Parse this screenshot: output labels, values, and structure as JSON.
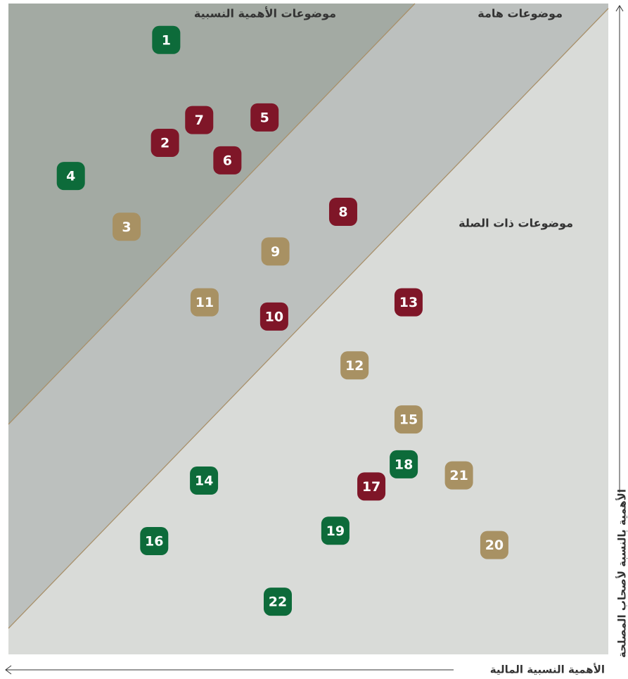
{
  "chart_data": {
    "type": "scatter",
    "annotations": [
      "موضوعات الأهمية النسبية",
      "موضوعات هامة",
      "موضوعات ذات الصلة"
    ],
    "x_label": "الأهمية النسبية المالية",
    "y_label": "الأهمية بالنسبة لأصحاب المصلحة",
    "xlim": [
      0,
      100
    ],
    "ylim": [
      0,
      100
    ],
    "points": [
      {
        "label": "1",
        "x": 26.3,
        "y": 94.4,
        "color": "#0d6b3a"
      },
      {
        "label": "2",
        "x": 26.1,
        "y": 78.6,
        "color": "#7f1628"
      },
      {
        "label": "3",
        "x": 19.7,
        "y": 65.7,
        "color": "#a89163"
      },
      {
        "label": "4",
        "x": 10.4,
        "y": 73.5,
        "color": "#0d6b3a"
      },
      {
        "label": "5",
        "x": 42.7,
        "y": 82.5,
        "color": "#7f1628"
      },
      {
        "label": "6",
        "x": 36.5,
        "y": 75.9,
        "color": "#7f1628"
      },
      {
        "label": "7",
        "x": 31.8,
        "y": 82.1,
        "color": "#7f1628"
      },
      {
        "label": "8",
        "x": 55.8,
        "y": 68.0,
        "color": "#7f1628"
      },
      {
        "label": "9",
        "x": 44.5,
        "y": 61.9,
        "color": "#a89163"
      },
      {
        "label": "10",
        "x": 44.3,
        "y": 51.9,
        "color": "#7f1628"
      },
      {
        "label": "11",
        "x": 32.7,
        "y": 54.1,
        "color": "#a89163"
      },
      {
        "label": "12",
        "x": 57.7,
        "y": 44.4,
        "color": "#a89163"
      },
      {
        "label": "13",
        "x": 66.7,
        "y": 54.1,
        "color": "#7f1628"
      },
      {
        "label": "14",
        "x": 32.6,
        "y": 26.7,
        "color": "#0d6b3a"
      },
      {
        "label": "15",
        "x": 66.7,
        "y": 36.1,
        "color": "#a89163"
      },
      {
        "label": "16",
        "x": 24.3,
        "y": 17.4,
        "color": "#0d6b3a"
      },
      {
        "label": "17",
        "x": 60.5,
        "y": 25.8,
        "color": "#7f1628"
      },
      {
        "label": "18",
        "x": 65.9,
        "y": 29.2,
        "color": "#0d6b3a"
      },
      {
        "label": "19",
        "x": 54.5,
        "y": 19.0,
        "color": "#0d6b3a"
      },
      {
        "label": "20",
        "x": 81.0,
        "y": 16.8,
        "color": "#a89163"
      },
      {
        "label": "21",
        "x": 75.1,
        "y": 27.5,
        "color": "#a89163"
      },
      {
        "label": "22",
        "x": 44.9,
        "y": 8.1,
        "color": "#0d6b3a"
      }
    ]
  }
}
